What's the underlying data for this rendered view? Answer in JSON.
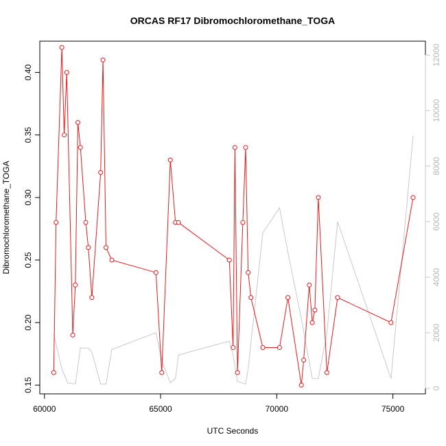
{
  "chart_data": {
    "type": "line",
    "title": "ORCAS RF17 Dibromochloromethane_TOGA",
    "xlabel": "UTC Seconds",
    "ylabel": "Dibromochloromethane_TOGA",
    "xlim": [
      59800,
      76400
    ],
    "ylim": [
      0.143,
      0.425
    ],
    "y2lim": [
      -200,
      12500
    ],
    "x_ticks": [
      60000,
      65000,
      70000,
      75000
    ],
    "y_ticks": [
      0.15,
      0.2,
      0.25,
      0.3,
      0.35,
      0.4
    ],
    "y_tick_labels": [
      "0.15",
      "0.20",
      "0.25",
      "0.30",
      "0.35",
      "0.40"
    ],
    "y2_ticks": [
      0,
      2000,
      4000,
      6000,
      8000,
      10000,
      12000
    ],
    "colors": {
      "primary": "#e41a1c",
      "secondary": "#c8c8c8"
    },
    "series": [
      {
        "axis": "left",
        "style": "line+open-circles",
        "points": [
          [
            60400,
            0.16
          ],
          [
            60500,
            0.28
          ],
          [
            60750,
            0.42
          ],
          [
            60850,
            0.35
          ],
          [
            60960,
            0.4
          ],
          [
            61220,
            0.19
          ],
          [
            61330,
            0.23
          ],
          [
            61440,
            0.36
          ],
          [
            61550,
            0.34
          ],
          [
            61780,
            0.28
          ],
          [
            61890,
            0.26
          ],
          [
            62040,
            0.22
          ],
          [
            62420,
            0.32
          ],
          [
            62520,
            0.41
          ],
          [
            62650,
            0.26
          ],
          [
            62900,
            0.25
          ],
          [
            64800,
            0.24
          ],
          [
            65050,
            0.16
          ],
          [
            65420,
            0.33
          ],
          [
            65640,
            0.28
          ],
          [
            65770,
            0.28
          ],
          [
            67960,
            0.25
          ],
          [
            68120,
            0.18
          ],
          [
            68200,
            0.34
          ],
          [
            68310,
            0.16
          ],
          [
            68540,
            0.28
          ],
          [
            68660,
            0.34
          ],
          [
            68770,
            0.24
          ],
          [
            68890,
            0.22
          ],
          [
            69400,
            0.18
          ],
          [
            70120,
            0.18
          ],
          [
            70480,
            0.22
          ],
          [
            71060,
            0.15
          ],
          [
            71160,
            0.17
          ],
          [
            71400,
            0.23
          ],
          [
            71530,
            0.2
          ],
          [
            71640,
            0.21
          ],
          [
            71790,
            0.3
          ],
          [
            72160,
            0.16
          ],
          [
            72620,
            0.22
          ],
          [
            74920,
            0.2
          ],
          [
            75870,
            0.3
          ]
        ]
      },
      {
        "axis": "right",
        "style": "line",
        "points": [
          [
            60400,
            1950
          ],
          [
            60750,
            700
          ],
          [
            61000,
            200
          ],
          [
            61330,
            150
          ],
          [
            61550,
            1450
          ],
          [
            61890,
            1450
          ],
          [
            62040,
            1300
          ],
          [
            62420,
            150
          ],
          [
            62650,
            150
          ],
          [
            62900,
            1400
          ],
          [
            64800,
            2000
          ],
          [
            65050,
            1000
          ],
          [
            65420,
            200
          ],
          [
            65640,
            350
          ],
          [
            65770,
            1200
          ],
          [
            67960,
            1700
          ],
          [
            68120,
            1200
          ],
          [
            68310,
            250
          ],
          [
            68660,
            150
          ],
          [
            68770,
            700
          ],
          [
            69400,
            5600
          ],
          [
            70120,
            6500
          ],
          [
            70480,
            4900
          ],
          [
            71060,
            2500
          ],
          [
            71530,
            350
          ],
          [
            71790,
            350
          ],
          [
            72160,
            2000
          ],
          [
            72620,
            6000
          ],
          [
            74920,
            350
          ],
          [
            75870,
            9100
          ]
        ]
      }
    ]
  }
}
